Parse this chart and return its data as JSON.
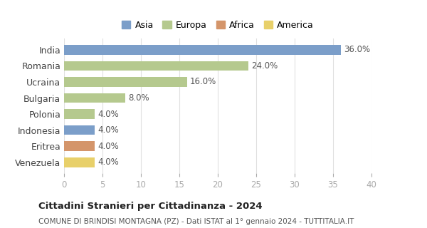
{
  "countries": [
    "India",
    "Romania",
    "Ucraina",
    "Bulgaria",
    "Polonia",
    "Indonesia",
    "Eritrea",
    "Venezuela"
  ],
  "values": [
    36.0,
    24.0,
    16.0,
    8.0,
    4.0,
    4.0,
    4.0,
    4.0
  ],
  "colors": [
    "#7b9ec9",
    "#b5c98e",
    "#b5c98e",
    "#b5c98e",
    "#b5c98e",
    "#7b9ec9",
    "#d4956a",
    "#e8d06a"
  ],
  "legend_labels": [
    "Asia",
    "Europa",
    "Africa",
    "America"
  ],
  "legend_colors": [
    "#7b9ec9",
    "#b5c98e",
    "#d4956a",
    "#e8d06a"
  ],
  "xlim": [
    0,
    40
  ],
  "xticks": [
    0,
    5,
    10,
    15,
    20,
    25,
    30,
    35,
    40
  ],
  "title_bold": "Cittadini Stranieri per Cittadinanza - 2024",
  "subtitle": "COMUNE DI BRINDISI MONTAGNA (PZ) - Dati ISTAT al 1° gennaio 2024 - TUTTITALIA.IT",
  "background_color": "#ffffff",
  "grid_color": "#e0e0e0"
}
